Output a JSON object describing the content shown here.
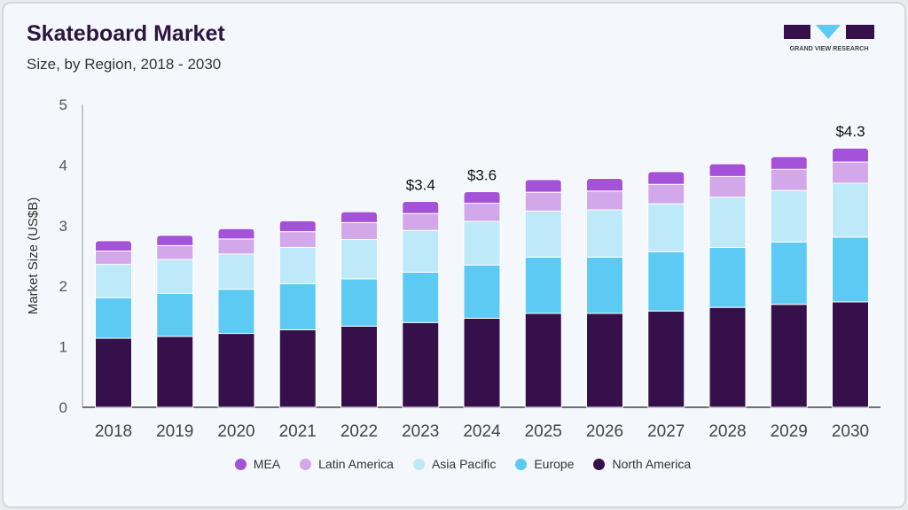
{
  "header": {
    "title": "Skateboard Market",
    "subtitle": "Size, by Region, 2018 - 2030",
    "logo_text": "GRAND VIEW RESEARCH"
  },
  "chart_data": {
    "type": "bar",
    "stacked": true,
    "title": "Skateboard Market",
    "subtitle": "Size, by Region, 2018 - 2030",
    "xlabel": "",
    "ylabel": "Market Size (US$B)",
    "ylim": [
      0,
      5
    ],
    "yticks": [
      "0",
      "1",
      "2",
      "3",
      "4",
      "5"
    ],
    "grid": false,
    "legend_position": "bottom",
    "categories": [
      "2018",
      "2019",
      "2020",
      "2021",
      "2022",
      "2023",
      "2024",
      "2025",
      "2026",
      "2027",
      "2028",
      "2029",
      "2030"
    ],
    "series": [
      {
        "name": "North America",
        "color": "#35104a",
        "values": [
          1.14,
          1.17,
          1.22,
          1.28,
          1.34,
          1.4,
          1.47,
          1.55,
          1.55,
          1.59,
          1.65,
          1.7,
          1.74
        ]
      },
      {
        "name": "Europe",
        "color": "#5ccaf3",
        "values": [
          0.67,
          0.71,
          0.73,
          0.76,
          0.78,
          0.83,
          0.88,
          0.93,
          0.93,
          0.98,
          0.99,
          1.03,
          1.07
        ]
      },
      {
        "name": "Asia Pacific",
        "color": "#bde9f9",
        "values": [
          0.55,
          0.56,
          0.58,
          0.6,
          0.65,
          0.69,
          0.72,
          0.76,
          0.78,
          0.79,
          0.83,
          0.85,
          0.89
        ]
      },
      {
        "name": "Latin America",
        "color": "#d3a8ea",
        "values": [
          0.22,
          0.23,
          0.25,
          0.26,
          0.28,
          0.28,
          0.3,
          0.31,
          0.31,
          0.32,
          0.34,
          0.35,
          0.35
        ]
      },
      {
        "name": "MEA",
        "color": "#a452d8",
        "values": [
          0.17,
          0.17,
          0.17,
          0.18,
          0.18,
          0.2,
          0.19,
          0.21,
          0.21,
          0.21,
          0.21,
          0.21,
          0.23
        ]
      }
    ],
    "annotations": [
      {
        "category": "2023",
        "label": "$3.4"
      },
      {
        "category": "2024",
        "label": "$3.6"
      },
      {
        "category": "2030",
        "label": "$4.3"
      }
    ],
    "legend_order": [
      "MEA",
      "Latin America",
      "Asia Pacific",
      "Europe",
      "North America"
    ]
  }
}
